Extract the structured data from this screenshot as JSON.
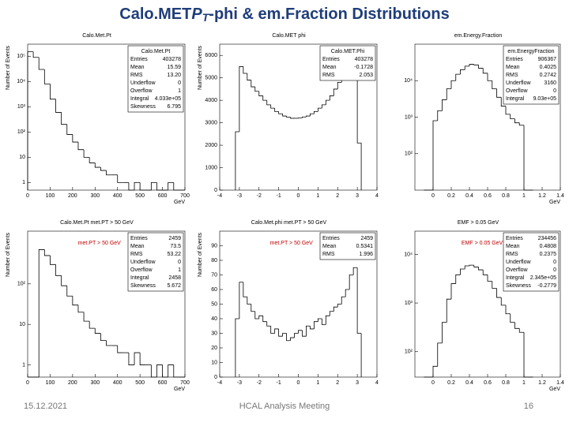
{
  "slide": {
    "title_pre": "Calo.MET",
    "title_sym": "P",
    "title_sub": "T",
    "title_post": "-phi & em.Fraction Distributions",
    "date": "15.12.2021",
    "footer": "HCAL Analysis Meeting",
    "page": "16"
  },
  "chart_data": [
    {
      "type": "histogram",
      "title": "Calo.Met.Pt",
      "log": true,
      "color": "#000000",
      "ylabel": "Number of Events",
      "xlabel": "GeV",
      "stats": {
        "name": "Calo.Met.Pt",
        "rows": [
          [
            "Entries",
            "403278"
          ],
          [
            "Mean",
            "15.59"
          ],
          [
            "RMS",
            "13.20"
          ],
          [
            "Underflow",
            "0"
          ],
          [
            "Overflow",
            "1"
          ],
          [
            "Integral",
            "4.033e+05"
          ],
          [
            "Skewness",
            "6.795"
          ]
        ]
      },
      "bins": [
        0,
        25,
        50,
        75,
        100,
        125,
        150,
        175,
        200,
        225,
        250,
        275,
        300,
        325,
        350,
        375,
        400,
        425,
        450,
        475,
        500,
        525,
        550,
        575,
        600,
        625,
        650,
        675,
        700
      ],
      "values": [
        150000,
        90000,
        30000,
        8000,
        2000,
        600,
        200,
        80,
        40,
        20,
        10,
        6,
        4,
        3,
        2,
        2,
        1,
        1,
        0,
        1,
        0,
        0,
        1,
        0,
        0,
        1,
        0,
        0
      ],
      "xlim": [
        0,
        700
      ],
      "xticks": [
        0,
        100,
        200,
        300,
        400,
        500,
        600,
        700
      ],
      "ylim": [
        0.5,
        300000
      ],
      "yticks": [
        1,
        10,
        {
          "value": 100,
          "label": "10²"
        },
        {
          "value": 1000,
          "label": "10³"
        },
        {
          "value": 10000,
          "label": "10⁴"
        },
        {
          "value": 100000,
          "label": "10⁵"
        }
      ]
    },
    {
      "type": "histogram",
      "title": "Calo.MET phi",
      "log": false,
      "color": "#000000",
      "ylabel": "Number of Events",
      "stats": {
        "name": "Calo.MET.Phi",
        "rows": [
          [
            "Entries",
            "403278"
          ],
          [
            "Mean",
            "-0.1728"
          ],
          [
            "RMS",
            "2.053"
          ]
        ]
      },
      "bins": [
        -3.2,
        -3.0,
        -2.8,
        -2.6,
        -2.4,
        -2.2,
        -2.0,
        -1.8,
        -1.6,
        -1.4,
        -1.2,
        -1.0,
        -0.8,
        -0.6,
        -0.4,
        -0.2,
        0,
        0.2,
        0.4,
        0.6,
        0.8,
        1.0,
        1.2,
        1.4,
        1.6,
        1.8,
        2.0,
        2.2,
        2.4,
        2.6,
        2.8,
        3.0,
        3.2
      ],
      "values": [
        2600,
        5500,
        5200,
        4900,
        4600,
        4400,
        4200,
        4000,
        3800,
        3650,
        3500,
        3400,
        3300,
        3250,
        3200,
        3200,
        3220,
        3260,
        3300,
        3400,
        3500,
        3650,
        3800,
        4000,
        4200,
        4500,
        4800,
        5100,
        5400,
        5700,
        5900,
        2100
      ],
      "xlim": [
        -4,
        4
      ],
      "xticks": [
        -4,
        -3,
        -2,
        -1,
        0,
        1,
        2,
        3,
        4
      ],
      "ylim": [
        0,
        6500
      ],
      "yticks": [
        0,
        1000,
        2000,
        3000,
        4000,
        5000,
        6000
      ]
    },
    {
      "type": "histogram",
      "title": "em.Energy.Fraction",
      "log": true,
      "color": "#000000",
      "xlabel": "GeV",
      "stats": {
        "name": "em.EnergyFraction",
        "rows": [
          [
            "Entries",
            "906367"
          ],
          [
            "Mean",
            "0.4025"
          ],
          [
            "RMS",
            "0.2742"
          ],
          [
            "Underflow",
            "3160"
          ],
          [
            "Overflow",
            "0"
          ],
          [
            "Integral",
            "9.03e+05"
          ]
        ]
      },
      "bins": [
        -0.1,
        -0.05,
        0,
        0.05,
        0.1,
        0.15,
        0.2,
        0.25,
        0.3,
        0.35,
        0.4,
        0.45,
        0.5,
        0.55,
        0.6,
        0.65,
        0.7,
        0.75,
        0.8,
        0.85,
        0.9,
        0.95,
        1.0,
        1.05,
        1.1
      ],
      "values": [
        0,
        0,
        800,
        1500,
        3000,
        6000,
        10000,
        15000,
        20000,
        25000,
        28000,
        27000,
        22000,
        16000,
        10000,
        6000,
        3500,
        2000,
        1200,
        900,
        700,
        600,
        0,
        0
      ],
      "xlim": [
        -0.2,
        1.4
      ],
      "xticks": [
        0,
        0.2,
        0.4,
        0.6,
        0.8,
        1,
        1.2,
        1.4
      ],
      "ylim": [
        10,
        100000
      ],
      "yticks": [
        {
          "value": 100,
          "label": "10²"
        },
        {
          "value": 1000,
          "label": "10³"
        },
        {
          "value": 10000,
          "label": "10⁴"
        }
      ]
    },
    {
      "type": "histogram",
      "title": "Calo.Met.Pt met.PT > 50 GeV",
      "annotation": "met.PT > 50 GeV",
      "log": true,
      "color": "#000000",
      "ylabel": "Number of Events",
      "xlabel": "GeV",
      "stats": {
        "rows": [
          [
            "Entries",
            "2459"
          ],
          [
            "Mean",
            "73.5"
          ],
          [
            "RMS",
            "53.22"
          ],
          [
            "Underflow",
            "0"
          ],
          [
            "Overflow",
            "1"
          ],
          [
            "Integral",
            "2458"
          ],
          [
            "Skewness",
            "5.672"
          ]
        ]
      },
      "bins": [
        0,
        25,
        50,
        75,
        100,
        125,
        150,
        175,
        200,
        225,
        250,
        275,
        300,
        325,
        350,
        375,
        400,
        425,
        450,
        475,
        500,
        525,
        550,
        575,
        600,
        625,
        650,
        675,
        700
      ],
      "values": [
        0,
        0,
        700,
        500,
        300,
        160,
        90,
        50,
        30,
        20,
        12,
        8,
        6,
        4,
        3,
        3,
        2,
        2,
        1,
        2,
        1,
        1,
        0,
        1,
        0,
        1,
        0,
        0
      ],
      "xlim": [
        0,
        700
      ],
      "xticks": [
        0,
        100,
        200,
        300,
        400,
        500,
        600,
        700
      ],
      "ylim": [
        0.5,
        2000
      ],
      "yticks": [
        1,
        10,
        {
          "value": 100,
          "label": "10²"
        }
      ]
    },
    {
      "type": "histogram",
      "title": "Calo.Met.phi met.PT > 50 GeV",
      "annotation": "met.PT > 50 GeV",
      "log": false,
      "color": "#000000",
      "ylabel": "Number of Events",
      "stats": {
        "rows": [
          [
            "Entries",
            "2459"
          ],
          [
            "Mean",
            "0.5341"
          ],
          [
            "RMS",
            "1.996"
          ]
        ]
      },
      "bins": [
        -3.2,
        -3.0,
        -2.8,
        -2.6,
        -2.4,
        -2.2,
        -2.0,
        -1.8,
        -1.6,
        -1.4,
        -1.2,
        -1.0,
        -0.8,
        -0.6,
        -0.4,
        -0.2,
        0,
        0.2,
        0.4,
        0.6,
        0.8,
        1.0,
        1.2,
        1.4,
        1.6,
        1.8,
        2.0,
        2.2,
        2.4,
        2.6,
        2.8,
        3.0,
        3.2
      ],
      "values": [
        40,
        65,
        55,
        50,
        45,
        40,
        42,
        38,
        35,
        30,
        33,
        28,
        30,
        25,
        27,
        30,
        32,
        28,
        35,
        33,
        38,
        40,
        36,
        42,
        45,
        48,
        50,
        55,
        60,
        70,
        75,
        30
      ],
      "xlim": [
        -4,
        4
      ],
      "xticks": [
        -4,
        -3,
        -2,
        -1,
        0,
        1,
        2,
        3,
        4
      ],
      "ylim": [
        0,
        100
      ],
      "yticks": [
        0,
        10,
        20,
        30,
        40,
        50,
        60,
        70,
        80,
        90
      ]
    },
    {
      "type": "histogram",
      "title": "EMF > 0.05 GeV",
      "annotation": "EMF > 0.05 GeV",
      "log": true,
      "color": "#000000",
      "xlabel": "GeV",
      "stats": {
        "rows": [
          [
            "Entries",
            "234456"
          ],
          [
            "Mean",
            "0.4808"
          ],
          [
            "RMS",
            "0.2375"
          ],
          [
            "Underflow",
            "0"
          ],
          [
            "Overflow",
            "0"
          ],
          [
            "Integral",
            "2.345e+05"
          ],
          [
            "Skewness",
            "-0.2779"
          ]
        ]
      },
      "bins": [
        -0.1,
        -0.05,
        0,
        0.05,
        0.1,
        0.15,
        0.2,
        0.25,
        0.3,
        0.35,
        0.4,
        0.45,
        0.5,
        0.55,
        0.6,
        0.65,
        0.7,
        0.75,
        0.8,
        0.85,
        0.9,
        0.95,
        1.0,
        1.05,
        1.1
      ],
      "values": [
        0,
        0,
        50,
        150,
        400,
        1200,
        2500,
        3800,
        5000,
        5800,
        6000,
        5500,
        4800,
        3800,
        2800,
        2000,
        1300,
        900,
        600,
        400,
        300,
        250,
        0,
        0
      ],
      "xlim": [
        -0.2,
        1.4
      ],
      "xticks": [
        0,
        0.2,
        0.4,
        0.6,
        0.8,
        1,
        1.2,
        1.4
      ],
      "ylim": [
        30,
        30000
      ],
      "yticks": [
        {
          "value": 100,
          "label": "10²"
        },
        {
          "value": 1000,
          "label": "10³"
        },
        {
          "value": 10000,
          "label": "10⁴"
        }
      ]
    }
  ]
}
